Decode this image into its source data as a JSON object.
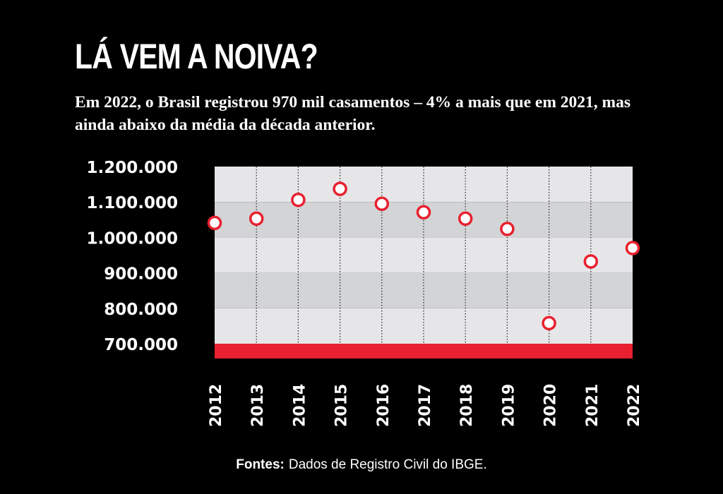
{
  "header": {
    "title": "LÁ VEM A NOIVA?",
    "subtitle": "Em 2022, o Brasil registrou 970 mil casamentos – 4% a mais que em 2021, mas ainda abaixo da média da década anterior."
  },
  "source": {
    "label": "Fontes:",
    "text": "Dados de Registro Civil do IBGE."
  },
  "colors": {
    "background": "#000000",
    "band_light": "#e6e6e8",
    "band_dark": "#d3d4d6",
    "accent": "#e8202f",
    "text": "#ffffff"
  },
  "chart_data": {
    "type": "scatter",
    "title": "",
    "xlabel": "",
    "ylabel": "",
    "categories": [
      "2012",
      "2013",
      "2014",
      "2015",
      "2016",
      "2017",
      "2018",
      "2019",
      "2020",
      "2021",
      "2022"
    ],
    "values": [
      1041000,
      1053000,
      1106000,
      1137000,
      1095000,
      1071000,
      1053000,
      1024000,
      758000,
      932000,
      970000
    ],
    "yticks": [
      "1.200.000",
      "1.100.000",
      "1.000.000",
      "900.000",
      "800.000",
      "700.000"
    ],
    "ylim": [
      700000,
      1200000
    ],
    "grid": true
  }
}
